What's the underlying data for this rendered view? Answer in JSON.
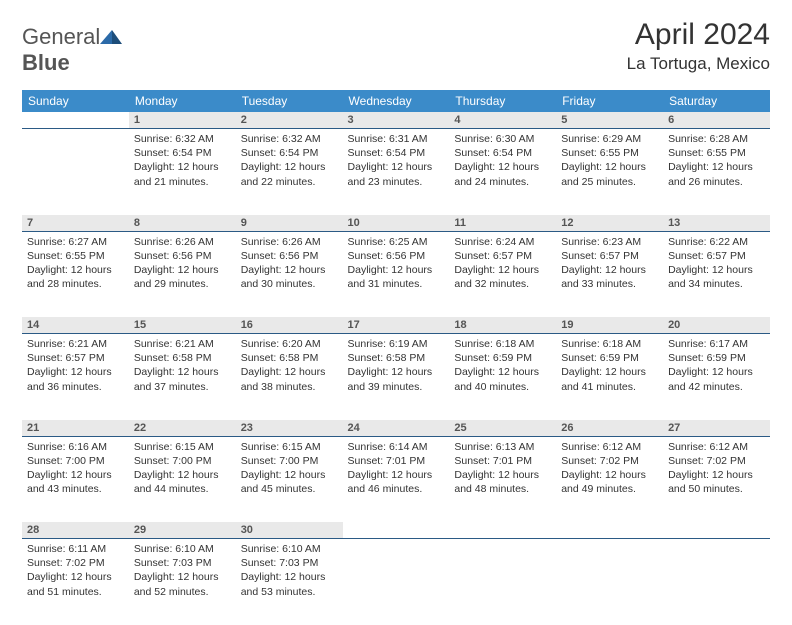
{
  "logo": {
    "word1": "General",
    "word2": "Blue"
  },
  "colors": {
    "headerBg": "#3b8bc9",
    "headerText": "#ffffff",
    "dayNumBg": "#e9e9e9",
    "border": "#2b5a85"
  },
  "title": "April 2024",
  "location": "La Tortuga, Mexico",
  "dayHeaders": [
    "Sunday",
    "Monday",
    "Tuesday",
    "Wednesday",
    "Thursday",
    "Friday",
    "Saturday"
  ],
  "weeks": [
    {
      "numbers": [
        "",
        "1",
        "2",
        "3",
        "4",
        "5",
        "6"
      ],
      "cells": [
        null,
        {
          "sr": "Sunrise: 6:32 AM",
          "ss": "Sunset: 6:54 PM",
          "d1": "Daylight: 12 hours",
          "d2": "and 21 minutes."
        },
        {
          "sr": "Sunrise: 6:32 AM",
          "ss": "Sunset: 6:54 PM",
          "d1": "Daylight: 12 hours",
          "d2": "and 22 minutes."
        },
        {
          "sr": "Sunrise: 6:31 AM",
          "ss": "Sunset: 6:54 PM",
          "d1": "Daylight: 12 hours",
          "d2": "and 23 minutes."
        },
        {
          "sr": "Sunrise: 6:30 AM",
          "ss": "Sunset: 6:54 PM",
          "d1": "Daylight: 12 hours",
          "d2": "and 24 minutes."
        },
        {
          "sr": "Sunrise: 6:29 AM",
          "ss": "Sunset: 6:55 PM",
          "d1": "Daylight: 12 hours",
          "d2": "and 25 minutes."
        },
        {
          "sr": "Sunrise: 6:28 AM",
          "ss": "Sunset: 6:55 PM",
          "d1": "Daylight: 12 hours",
          "d2": "and 26 minutes."
        }
      ]
    },
    {
      "numbers": [
        "7",
        "8",
        "9",
        "10",
        "11",
        "12",
        "13"
      ],
      "cells": [
        {
          "sr": "Sunrise: 6:27 AM",
          "ss": "Sunset: 6:55 PM",
          "d1": "Daylight: 12 hours",
          "d2": "and 28 minutes."
        },
        {
          "sr": "Sunrise: 6:26 AM",
          "ss": "Sunset: 6:56 PM",
          "d1": "Daylight: 12 hours",
          "d2": "and 29 minutes."
        },
        {
          "sr": "Sunrise: 6:26 AM",
          "ss": "Sunset: 6:56 PM",
          "d1": "Daylight: 12 hours",
          "d2": "and 30 minutes."
        },
        {
          "sr": "Sunrise: 6:25 AM",
          "ss": "Sunset: 6:56 PM",
          "d1": "Daylight: 12 hours",
          "d2": "and 31 minutes."
        },
        {
          "sr": "Sunrise: 6:24 AM",
          "ss": "Sunset: 6:57 PM",
          "d1": "Daylight: 12 hours",
          "d2": "and 32 minutes."
        },
        {
          "sr": "Sunrise: 6:23 AM",
          "ss": "Sunset: 6:57 PM",
          "d1": "Daylight: 12 hours",
          "d2": "and 33 minutes."
        },
        {
          "sr": "Sunrise: 6:22 AM",
          "ss": "Sunset: 6:57 PM",
          "d1": "Daylight: 12 hours",
          "d2": "and 34 minutes."
        }
      ]
    },
    {
      "numbers": [
        "14",
        "15",
        "16",
        "17",
        "18",
        "19",
        "20"
      ],
      "cells": [
        {
          "sr": "Sunrise: 6:21 AM",
          "ss": "Sunset: 6:57 PM",
          "d1": "Daylight: 12 hours",
          "d2": "and 36 minutes."
        },
        {
          "sr": "Sunrise: 6:21 AM",
          "ss": "Sunset: 6:58 PM",
          "d1": "Daylight: 12 hours",
          "d2": "and 37 minutes."
        },
        {
          "sr": "Sunrise: 6:20 AM",
          "ss": "Sunset: 6:58 PM",
          "d1": "Daylight: 12 hours",
          "d2": "and 38 minutes."
        },
        {
          "sr": "Sunrise: 6:19 AM",
          "ss": "Sunset: 6:58 PM",
          "d1": "Daylight: 12 hours",
          "d2": "and 39 minutes."
        },
        {
          "sr": "Sunrise: 6:18 AM",
          "ss": "Sunset: 6:59 PM",
          "d1": "Daylight: 12 hours",
          "d2": "and 40 minutes."
        },
        {
          "sr": "Sunrise: 6:18 AM",
          "ss": "Sunset: 6:59 PM",
          "d1": "Daylight: 12 hours",
          "d2": "and 41 minutes."
        },
        {
          "sr": "Sunrise: 6:17 AM",
          "ss": "Sunset: 6:59 PM",
          "d1": "Daylight: 12 hours",
          "d2": "and 42 minutes."
        }
      ]
    },
    {
      "numbers": [
        "21",
        "22",
        "23",
        "24",
        "25",
        "26",
        "27"
      ],
      "cells": [
        {
          "sr": "Sunrise: 6:16 AM",
          "ss": "Sunset: 7:00 PM",
          "d1": "Daylight: 12 hours",
          "d2": "and 43 minutes."
        },
        {
          "sr": "Sunrise: 6:15 AM",
          "ss": "Sunset: 7:00 PM",
          "d1": "Daylight: 12 hours",
          "d2": "and 44 minutes."
        },
        {
          "sr": "Sunrise: 6:15 AM",
          "ss": "Sunset: 7:00 PM",
          "d1": "Daylight: 12 hours",
          "d2": "and 45 minutes."
        },
        {
          "sr": "Sunrise: 6:14 AM",
          "ss": "Sunset: 7:01 PM",
          "d1": "Daylight: 12 hours",
          "d2": "and 46 minutes."
        },
        {
          "sr": "Sunrise: 6:13 AM",
          "ss": "Sunset: 7:01 PM",
          "d1": "Daylight: 12 hours",
          "d2": "and 48 minutes."
        },
        {
          "sr": "Sunrise: 6:12 AM",
          "ss": "Sunset: 7:02 PM",
          "d1": "Daylight: 12 hours",
          "d2": "and 49 minutes."
        },
        {
          "sr": "Sunrise: 6:12 AM",
          "ss": "Sunset: 7:02 PM",
          "d1": "Daylight: 12 hours",
          "d2": "and 50 minutes."
        }
      ]
    },
    {
      "numbers": [
        "28",
        "29",
        "30",
        "",
        "",
        "",
        ""
      ],
      "cells": [
        {
          "sr": "Sunrise: 6:11 AM",
          "ss": "Sunset: 7:02 PM",
          "d1": "Daylight: 12 hours",
          "d2": "and 51 minutes."
        },
        {
          "sr": "Sunrise: 6:10 AM",
          "ss": "Sunset: 7:03 PM",
          "d1": "Daylight: 12 hours",
          "d2": "and 52 minutes."
        },
        {
          "sr": "Sunrise: 6:10 AM",
          "ss": "Sunset: 7:03 PM",
          "d1": "Daylight: 12 hours",
          "d2": "and 53 minutes."
        },
        null,
        null,
        null,
        null
      ]
    }
  ]
}
